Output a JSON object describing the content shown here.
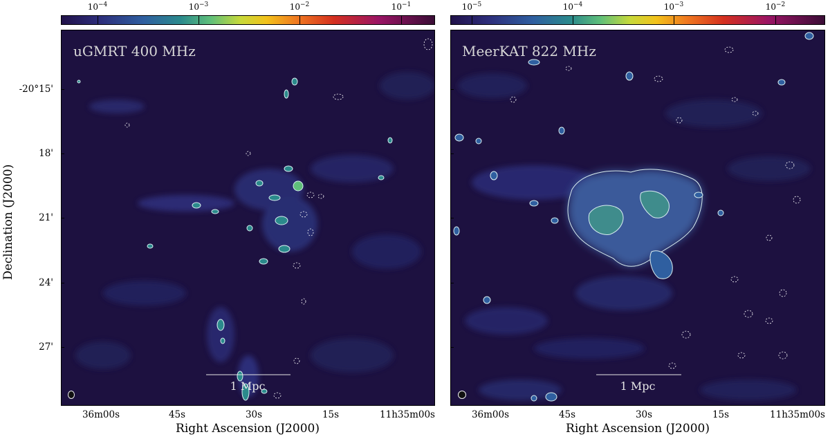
{
  "colors": {
    "background": "#1d1140",
    "contour_positive": "#d9eef0",
    "contour_negative": "#ffffff",
    "colormap": [
      "#21124a",
      "#2d2d7a",
      "#2f5fa0",
      "#2b8a8c",
      "#5fbf7a",
      "#c7d93a",
      "#f2c21b",
      "#f07a20",
      "#d4301f",
      "#9a1464",
      "#3a0d36"
    ]
  },
  "left_panel": {
    "label": "uGMRT 400 MHz",
    "scale_label": "1 Mpc",
    "colorbar_ticks": [
      "10",
      "10",
      "10",
      "10"
    ],
    "colorbar_exponents": [
      "−4",
      "−3",
      "−2",
      "−1"
    ],
    "x_ticks": [
      "36m00s",
      "45s",
      "30s",
      "15s",
      "11h35m00s"
    ],
    "y_ticks": [
      "-20°15'",
      "18'",
      "21'",
      "24'",
      "27'"
    ],
    "x_label": "Right Ascension (J2000)",
    "y_label": "Declination (J2000)"
  },
  "right_panel": {
    "label": "MeerKAT 822 MHz",
    "scale_label": "1 Mpc",
    "colorbar_ticks": [
      "10",
      "10",
      "10",
      "10"
    ],
    "colorbar_exponents": [
      "−5",
      "−4",
      "−3",
      "−2"
    ],
    "x_ticks": [
      "36m00s",
      "45s",
      "30s",
      "15s",
      "11h35m00s"
    ],
    "x_label": "Right Ascension (J2000)"
  }
}
